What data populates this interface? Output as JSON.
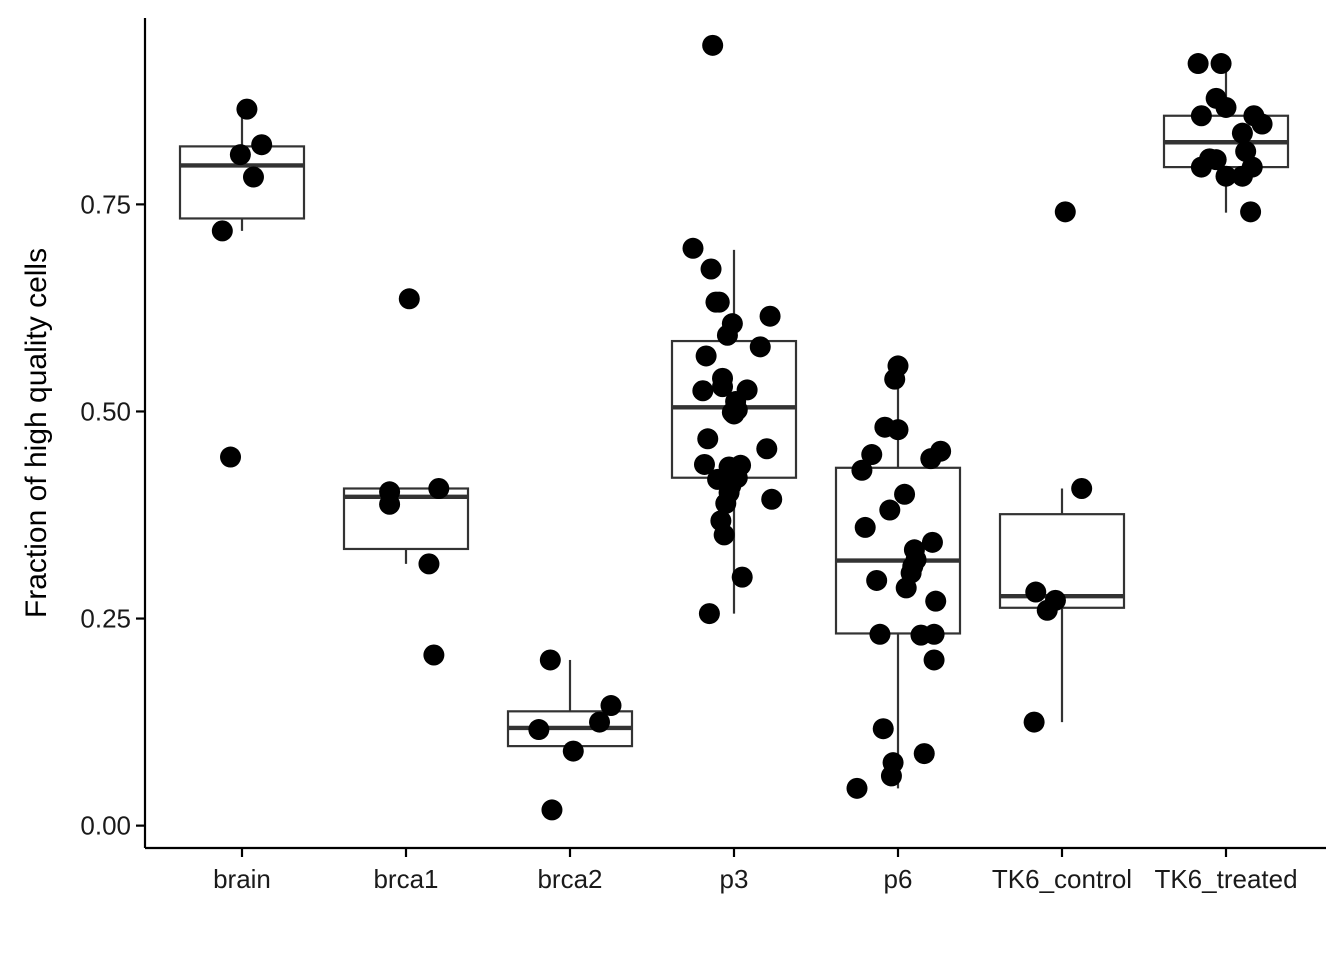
{
  "chart_data": {
    "type": "boxplot",
    "ylabel": "Fraction of high quality cells",
    "xlabel": "",
    "ylim": [
      -0.027,
      0.975
    ],
    "yticks": [
      0.0,
      0.25,
      0.5,
      0.75
    ],
    "ytick_labels": [
      "0.00",
      "0.25",
      "0.50",
      "0.75"
    ],
    "grid": false,
    "legend": "none",
    "colors": {
      "points": "#000000",
      "box": "#333333"
    },
    "categories": [
      "brain",
      "brca1",
      "brca2",
      "p3",
      "p6",
      "TK6_control",
      "TK6_treated"
    ],
    "boxes": [
      {
        "q1": 0.733,
        "median": 0.797,
        "q3": 0.82,
        "whisker_low": 0.718,
        "whisker_high": 0.865
      },
      {
        "q1": 0.334,
        "median": 0.397,
        "q3": 0.407,
        "whisker_low": 0.316,
        "whisker_high": 0.407
      },
      {
        "q1": 0.096,
        "median": 0.118,
        "q3": 0.138,
        "whisker_low": 0.096,
        "whisker_high": 0.2
      },
      {
        "q1": 0.42,
        "median": 0.505,
        "q3": 0.585,
        "whisker_low": 0.256,
        "whisker_high": 0.695
      },
      {
        "q1": 0.232,
        "median": 0.32,
        "q3": 0.432,
        "whisker_low": 0.045,
        "whisker_high": 0.555
      },
      {
        "q1": 0.263,
        "median": 0.277,
        "q3": 0.376,
        "whisker_low": 0.125,
        "whisker_high": 0.407
      },
      {
        "q1": 0.795,
        "median": 0.825,
        "q3": 0.857,
        "whisker_low": 0.74,
        "whisker_high": 0.92
      }
    ],
    "points": [
      [
        [
          -0.12,
          0.718
        ],
        [
          -0.07,
          0.445
        ],
        [
          -0.01,
          0.81
        ],
        [
          0.03,
          0.865
        ],
        [
          0.07,
          0.783
        ],
        [
          0.12,
          0.822
        ]
      ],
      [
        [
          -0.1,
          0.403
        ],
        [
          -0.1,
          0.388
        ],
        [
          0.02,
          0.636
        ],
        [
          0.14,
          0.316
        ],
        [
          0.17,
          0.206
        ],
        [
          0.2,
          0.407
        ]
      ],
      [
        [
          -0.19,
          0.116
        ],
        [
          -0.12,
          0.2
        ],
        [
          -0.11,
          0.019
        ],
        [
          0.02,
          0.09
        ],
        [
          0.18,
          0.125
        ],
        [
          0.25,
          0.145
        ]
      ],
      [
        [
          -0.25,
          0.697
        ],
        [
          -0.19,
          0.525
        ],
        [
          -0.18,
          0.436
        ],
        [
          -0.17,
          0.567
        ],
        [
          -0.16,
          0.467
        ],
        [
          -0.15,
          0.256
        ],
        [
          -0.14,
          0.672
        ],
        [
          -0.13,
          0.942
        ],
        [
          -0.11,
          0.632
        ],
        [
          -0.1,
          0.418
        ],
        [
          -0.09,
          0.632
        ],
        [
          -0.08,
          0.368
        ],
        [
          -0.07,
          0.54
        ],
        [
          -0.07,
          0.53
        ],
        [
          -0.06,
          0.351
        ],
        [
          -0.05,
          0.389
        ],
        [
          -0.04,
          0.592
        ],
        [
          -0.03,
          0.433
        ],
        [
          -0.03,
          0.402
        ],
        [
          -0.02,
          0.41
        ],
        [
          -0.01,
          0.499
        ],
        [
          -0.01,
          0.606
        ],
        [
          0.0,
          0.497
        ],
        [
          0.01,
          0.512
        ],
        [
          0.02,
          0.42
        ],
        [
          0.02,
          0.502
        ],
        [
          0.04,
          0.435
        ],
        [
          0.05,
          0.3
        ],
        [
          0.08,
          0.526
        ],
        [
          0.16,
          0.578
        ],
        [
          0.2,
          0.455
        ],
        [
          0.22,
          0.615
        ],
        [
          0.23,
          0.394
        ]
      ],
      [
        [
          -0.25,
          0.045
        ],
        [
          -0.22,
          0.429
        ],
        [
          -0.2,
          0.36
        ],
        [
          -0.16,
          0.448
        ],
        [
          -0.13,
          0.296
        ],
        [
          -0.11,
          0.231
        ],
        [
          -0.09,
          0.117
        ],
        [
          -0.08,
          0.481
        ],
        [
          -0.05,
          0.381
        ],
        [
          -0.04,
          0.06
        ],
        [
          -0.03,
          0.076
        ],
        [
          -0.02,
          0.539
        ],
        [
          0.0,
          0.555
        ],
        [
          0.0,
          0.478
        ],
        [
          0.04,
          0.4
        ],
        [
          0.05,
          0.287
        ],
        [
          0.08,
          0.305
        ],
        [
          0.09,
          0.313
        ],
        [
          0.1,
          0.333
        ],
        [
          0.11,
          0.321
        ],
        [
          0.14,
          0.23
        ],
        [
          0.16,
          0.087
        ],
        [
          0.2,
          0.443
        ],
        [
          0.21,
          0.342
        ],
        [
          0.22,
          0.231
        ],
        [
          0.22,
          0.2
        ],
        [
          0.23,
          0.271
        ],
        [
          0.26,
          0.452
        ]
      ],
      [
        [
          -0.17,
          0.125
        ],
        [
          -0.16,
          0.282
        ],
        [
          -0.09,
          0.26
        ],
        [
          -0.04,
          0.272
        ],
        [
          0.02,
          0.741
        ],
        [
          0.12,
          0.407
        ]
      ],
      [
        [
          -0.17,
          0.92
        ],
        [
          -0.15,
          0.795
        ],
        [
          -0.15,
          0.857
        ],
        [
          -0.1,
          0.805
        ],
        [
          -0.06,
          0.878
        ],
        [
          -0.06,
          0.804
        ],
        [
          -0.03,
          0.92
        ],
        [
          0.0,
          0.867
        ],
        [
          0.0,
          0.784
        ],
        [
          0.1,
          0.836
        ],
        [
          0.1,
          0.784
        ],
        [
          0.12,
          0.814
        ],
        [
          0.15,
          0.741
        ],
        [
          0.16,
          0.795
        ],
        [
          0.17,
          0.857
        ],
        [
          0.22,
          0.847
        ]
      ]
    ]
  }
}
